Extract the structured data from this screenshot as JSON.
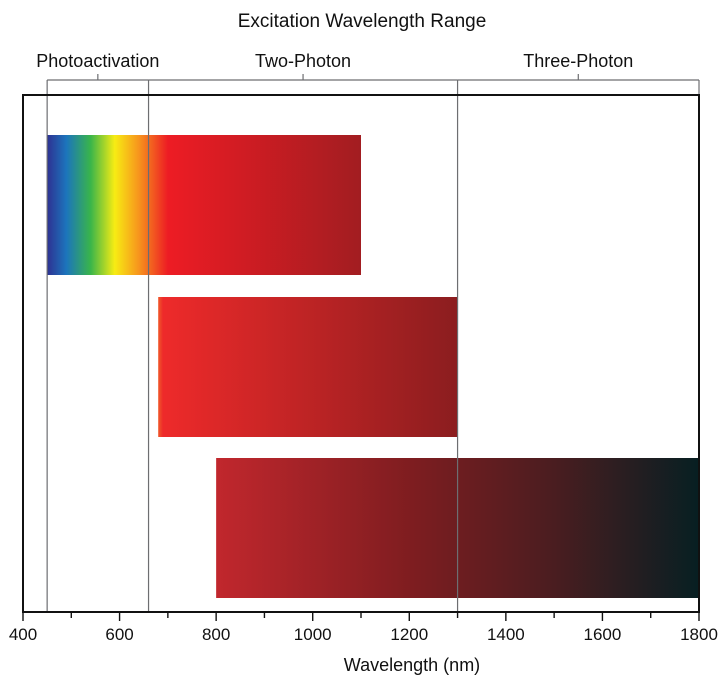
{
  "chart_data": {
    "type": "bar",
    "title": "Excitation Wavelength Range",
    "xlabel": "Wavelength (nm)",
    "ylabel": "",
    "xlim": [
      400,
      1800
    ],
    "x_ticks": [
      "400",
      "600",
      "800",
      "1000",
      "1200",
      "1400",
      "1600",
      "1800"
    ],
    "x_minor_tick_step": 100,
    "grid": false,
    "legend": "none",
    "regions": [
      {
        "label": "Photoactivation",
        "start": 450,
        "end": 660
      },
      {
        "label": "Two-Photon",
        "start": 660,
        "end": 1300
      },
      {
        "label": "Three-Photon",
        "start": 1300,
        "end": 1800
      }
    ],
    "bars": [
      {
        "start": 450,
        "end": 1100,
        "gradient": [
          {
            "wl": 450,
            "color": "#2e3192"
          },
          {
            "wl": 490,
            "color": "#1c75bc"
          },
          {
            "wl": 540,
            "color": "#39b54a"
          },
          {
            "wl": 590,
            "color": "#f7ec13"
          },
          {
            "wl": 640,
            "color": "#f7941d"
          },
          {
            "wl": 700,
            "color": "#ed1c24"
          },
          {
            "wl": 1100,
            "color": "#a21d21"
          }
        ]
      },
      {
        "start": 680,
        "end": 1300,
        "gradient": [
          {
            "wl": 680,
            "color": "#f0592a"
          },
          {
            "wl": 690,
            "color": "#ee2a2a"
          },
          {
            "wl": 1300,
            "color": "#8b1d1f"
          }
        ]
      },
      {
        "start": 800,
        "end": 1800,
        "gradient": [
          {
            "wl": 800,
            "color": "#c1272d"
          },
          {
            "wl": 1200,
            "color": "#7f1d20"
          },
          {
            "wl": 1500,
            "color": "#4a1d20"
          },
          {
            "wl": 1800,
            "color": "#071f22"
          }
        ]
      }
    ],
    "colors": {
      "frame": "#111111",
      "divider": "#6d6e71"
    }
  }
}
